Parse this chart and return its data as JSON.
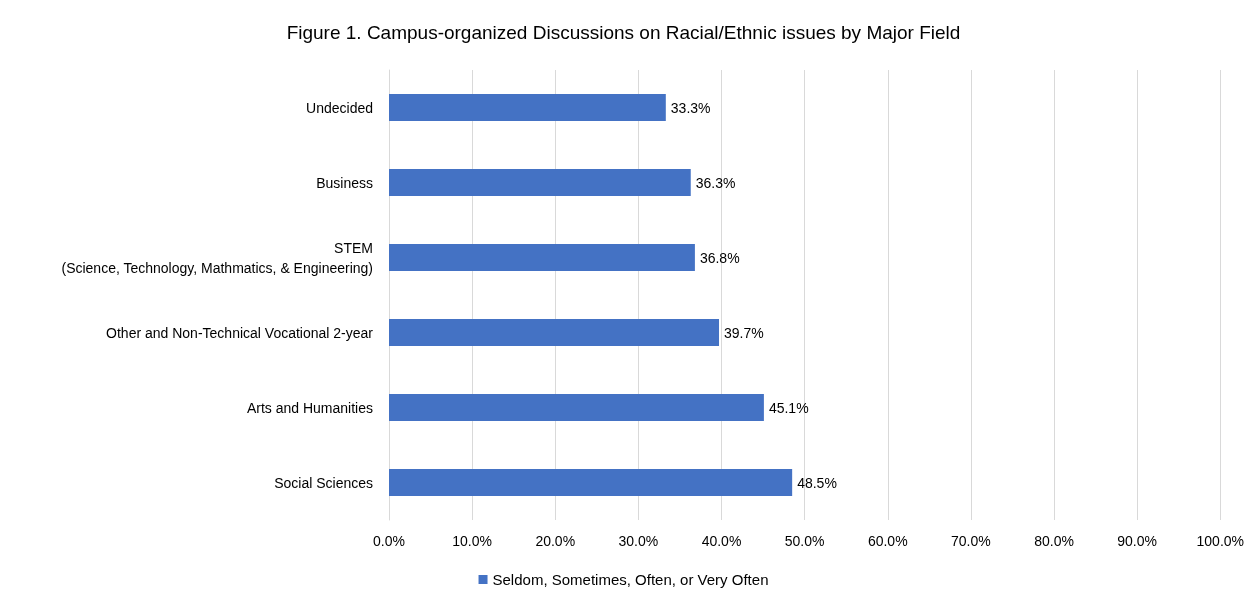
{
  "chart_data": {
    "type": "bar",
    "orientation": "horizontal",
    "title": "Figure 1. Campus-organized Discussions on Racial/Ethnic issues by Major Field",
    "categories": [
      "Undecided",
      "Business",
      "STEM\n(Science, Technology, Mathmatics, & Engineering)",
      "Other and Non-Technical Vocational 2-year",
      "Arts and Humanities",
      "Social Sciences"
    ],
    "series": [
      {
        "name": "Seldom, Sometimes, Often, or Very Often",
        "color": "#4472c4",
        "values": [
          33.3,
          36.3,
          36.8,
          39.7,
          45.1,
          48.5
        ],
        "value_labels": [
          "33.3%",
          "36.3%",
          "36.8%",
          "39.7%",
          "45.1%",
          "48.5%"
        ]
      }
    ],
    "xlim": [
      0,
      100
    ],
    "xticks": [
      {
        "value": 0,
        "label": "0.0%"
      },
      {
        "value": 10,
        "label": "10.0%"
      },
      {
        "value": 20,
        "label": "20.0%"
      },
      {
        "value": 30,
        "label": "30.0%"
      },
      {
        "value": 40,
        "label": "40.0%"
      },
      {
        "value": 50,
        "label": "50.0%"
      },
      {
        "value": 60,
        "label": "60.0%"
      },
      {
        "value": 70,
        "label": "70.0%"
      },
      {
        "value": 80,
        "label": "80.0%"
      },
      {
        "value": 90,
        "label": "90.0%"
      },
      {
        "value": 100,
        "label": "100.0%"
      }
    ],
    "grid": "x",
    "legend": "bottom"
  }
}
